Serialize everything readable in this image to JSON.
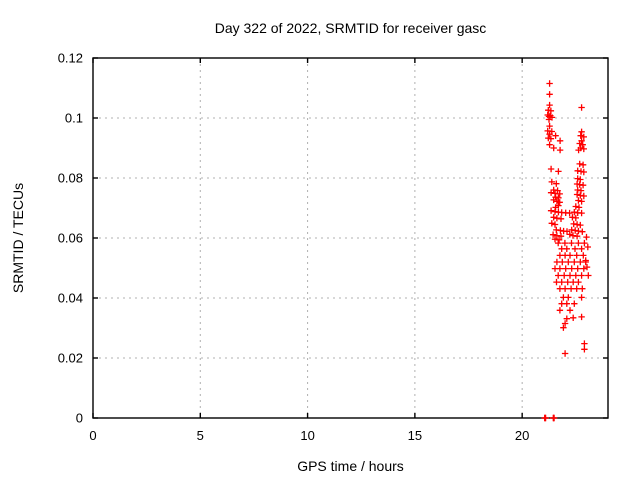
{
  "chart_data": {
    "type": "scatter",
    "title": "Day 322 of 2022, SRMTID for receiver gasc",
    "xlabel": "GPS time / hours",
    "ylabel": "SRMTID / TECUs",
    "xlim": [
      0,
      24
    ],
    "ylim": [
      0,
      0.12
    ],
    "xticks": [
      {
        "value": 0,
        "label": "0"
      },
      {
        "value": 5,
        "label": "5"
      },
      {
        "value": 10,
        "label": "10"
      },
      {
        "value": 15,
        "label": "15"
      },
      {
        "value": 20,
        "label": "20"
      }
    ],
    "yticks": [
      {
        "value": 0,
        "label": "0"
      },
      {
        "value": 0.02,
        "label": "0.02"
      },
      {
        "value": 0.04,
        "label": "0.04"
      },
      {
        "value": 0.06,
        "label": "0.06"
      },
      {
        "value": 0.08,
        "label": "0.08"
      },
      {
        "value": 0.1,
        "label": "0.1"
      },
      {
        "value": 0.12,
        "label": "0.12"
      }
    ],
    "grid": true,
    "legend_position": "none",
    "marker": "plus",
    "colors": {
      "marker": "#ff0000",
      "grid": "#b0b0b0",
      "frame": "#000000",
      "text": "#000000"
    },
    "series": [
      {
        "name": "SRMTID",
        "points": [
          [
            21.28,
            0.1115
          ],
          [
            21.28,
            0.1079
          ],
          [
            21.28,
            0.1043
          ],
          [
            21.22,
            0.1026
          ],
          [
            21.34,
            0.1024
          ],
          [
            21.19,
            0.101
          ],
          [
            21.31,
            0.1008
          ],
          [
            21.25,
            0.1005
          ],
          [
            21.39,
            0.1002
          ],
          [
            21.25,
            0.0995
          ],
          [
            21.28,
            0.0973
          ],
          [
            21.19,
            0.0957
          ],
          [
            21.38,
            0.0955
          ],
          [
            21.28,
            0.0946
          ],
          [
            21.22,
            0.0933
          ],
          [
            21.34,
            0.0931
          ],
          [
            21.56,
            0.0941
          ],
          [
            21.77,
            0.0924
          ],
          [
            21.28,
            0.0911
          ],
          [
            21.47,
            0.09
          ],
          [
            21.77,
            0.0893
          ],
          [
            22.77,
            0.1035
          ],
          [
            22.77,
            0.0954
          ],
          [
            22.73,
            0.0941
          ],
          [
            22.87,
            0.0937
          ],
          [
            22.77,
            0.0924
          ],
          [
            22.68,
            0.0915
          ],
          [
            22.82,
            0.0911
          ],
          [
            22.73,
            0.09
          ],
          [
            22.87,
            0.0897
          ],
          [
            22.63,
            0.0893
          ],
          [
            21.35,
            0.083
          ],
          [
            21.69,
            0.0822
          ],
          [
            21.38,
            0.0787
          ],
          [
            21.59,
            0.0781
          ],
          [
            21.47,
            0.076
          ],
          [
            21.65,
            0.0758
          ],
          [
            21.35,
            0.0751
          ],
          [
            21.53,
            0.0749
          ],
          [
            21.75,
            0.0747
          ],
          [
            21.56,
            0.0736
          ],
          [
            21.69,
            0.0734
          ],
          [
            21.47,
            0.0727
          ],
          [
            21.62,
            0.0722
          ],
          [
            21.75,
            0.0719
          ],
          [
            21.69,
            0.0708
          ],
          [
            21.56,
            0.0702
          ],
          [
            21.35,
            0.0691
          ],
          [
            21.53,
            0.0688
          ],
          [
            21.69,
            0.0686
          ],
          [
            21.84,
            0.0685
          ],
          [
            22.03,
            0.0684
          ],
          [
            22.21,
            0.0683
          ],
          [
            21.47,
            0.0669
          ],
          [
            21.62,
            0.0666
          ],
          [
            21.81,
            0.0664
          ],
          [
            21.38,
            0.0649
          ],
          [
            21.53,
            0.0645
          ],
          [
            21.59,
            0.0627
          ],
          [
            21.78,
            0.0625
          ],
          [
            21.93,
            0.0623
          ],
          [
            22.09,
            0.0622
          ],
          [
            21.44,
            0.0611
          ],
          [
            21.62,
            0.0608
          ],
          [
            21.81,
            0.0606
          ],
          [
            21.53,
            0.0596
          ],
          [
            21.72,
            0.0594
          ],
          [
            22.68,
            0.0847
          ],
          [
            22.84,
            0.0844
          ],
          [
            22.59,
            0.0824
          ],
          [
            22.74,
            0.0822
          ],
          [
            22.87,
            0.082
          ],
          [
            22.59,
            0.0798
          ],
          [
            22.71,
            0.0795
          ],
          [
            22.56,
            0.078
          ],
          [
            22.68,
            0.0778
          ],
          [
            22.84,
            0.0776
          ],
          [
            22.59,
            0.076
          ],
          [
            22.74,
            0.0758
          ],
          [
            22.56,
            0.0745
          ],
          [
            22.71,
            0.0742
          ],
          [
            22.87,
            0.074
          ],
          [
            22.62,
            0.0725
          ],
          [
            22.77,
            0.0722
          ],
          [
            22.5,
            0.0705
          ],
          [
            22.65,
            0.0702
          ],
          [
            22.43,
            0.0686
          ],
          [
            22.59,
            0.0684
          ],
          [
            22.77,
            0.0683
          ],
          [
            22.34,
            0.0669
          ],
          [
            22.5,
            0.0667
          ],
          [
            22.4,
            0.0647
          ],
          [
            22.56,
            0.0645
          ],
          [
            22.71,
            0.0643
          ],
          [
            22.31,
            0.0627
          ],
          [
            22.47,
            0.0625
          ],
          [
            22.62,
            0.0623
          ],
          [
            22.8,
            0.0621
          ],
          [
            22.22,
            0.0612
          ],
          [
            22.37,
            0.0608
          ],
          [
            22.56,
            0.0606
          ],
          [
            23.0,
            0.0603
          ],
          [
            23.06,
            0.057
          ],
          [
            22.96,
            0.0525
          ],
          [
            23.02,
            0.0503
          ],
          [
            23.08,
            0.0475
          ],
          [
            21.68,
            0.0583
          ],
          [
            21.99,
            0.0583
          ],
          [
            22.3,
            0.0583
          ],
          [
            22.62,
            0.0583
          ],
          [
            22.9,
            0.0583
          ],
          [
            21.84,
            0.0564
          ],
          [
            22.08,
            0.0564
          ],
          [
            22.46,
            0.0564
          ],
          [
            22.77,
            0.0564
          ],
          [
            21.76,
            0.0542
          ],
          [
            22.0,
            0.0542
          ],
          [
            22.23,
            0.0542
          ],
          [
            22.54,
            0.0542
          ],
          [
            22.85,
            0.0542
          ],
          [
            21.62,
            0.052
          ],
          [
            21.87,
            0.052
          ],
          [
            22.15,
            0.052
          ],
          [
            22.43,
            0.052
          ],
          [
            22.71,
            0.052
          ],
          [
            22.96,
            0.052
          ],
          [
            21.53,
            0.0498
          ],
          [
            21.76,
            0.0498
          ],
          [
            22.03,
            0.0498
          ],
          [
            22.31,
            0.0498
          ],
          [
            22.59,
            0.0498
          ],
          [
            22.87,
            0.0498
          ],
          [
            21.68,
            0.0475
          ],
          [
            21.96,
            0.0475
          ],
          [
            22.23,
            0.0475
          ],
          [
            22.5,
            0.0475
          ],
          [
            22.77,
            0.0475
          ],
          [
            21.6,
            0.0453
          ],
          [
            21.84,
            0.0453
          ],
          [
            22.12,
            0.0453
          ],
          [
            22.38,
            0.0453
          ],
          [
            22.62,
            0.0453
          ],
          [
            21.76,
            0.0431
          ],
          [
            22.0,
            0.0431
          ],
          [
            22.28,
            0.0431
          ],
          [
            22.54,
            0.0431
          ],
          [
            22.8,
            0.0431
          ],
          [
            21.92,
            0.0402
          ],
          [
            22.15,
            0.0402
          ],
          [
            22.77,
            0.0402
          ],
          [
            21.84,
            0.0381
          ],
          [
            22.08,
            0.0381
          ],
          [
            22.43,
            0.0381
          ],
          [
            21.76,
            0.0359
          ],
          [
            22.23,
            0.0359
          ],
          [
            22.08,
            0.0331
          ],
          [
            22.38,
            0.0334
          ],
          [
            22.77,
            0.0337
          ],
          [
            21.92,
            0.0301
          ],
          [
            22.0,
            0.0315
          ],
          [
            22.9,
            0.0248
          ],
          [
            22.9,
            0.0229
          ],
          [
            22.0,
            0.0215
          ],
          [
            21.05,
            0
          ],
          [
            21.07,
            0
          ],
          [
            21.09,
            0
          ],
          [
            21.45,
            0
          ],
          [
            21.47,
            0
          ],
          [
            21.49,
            0
          ]
        ]
      }
    ]
  }
}
